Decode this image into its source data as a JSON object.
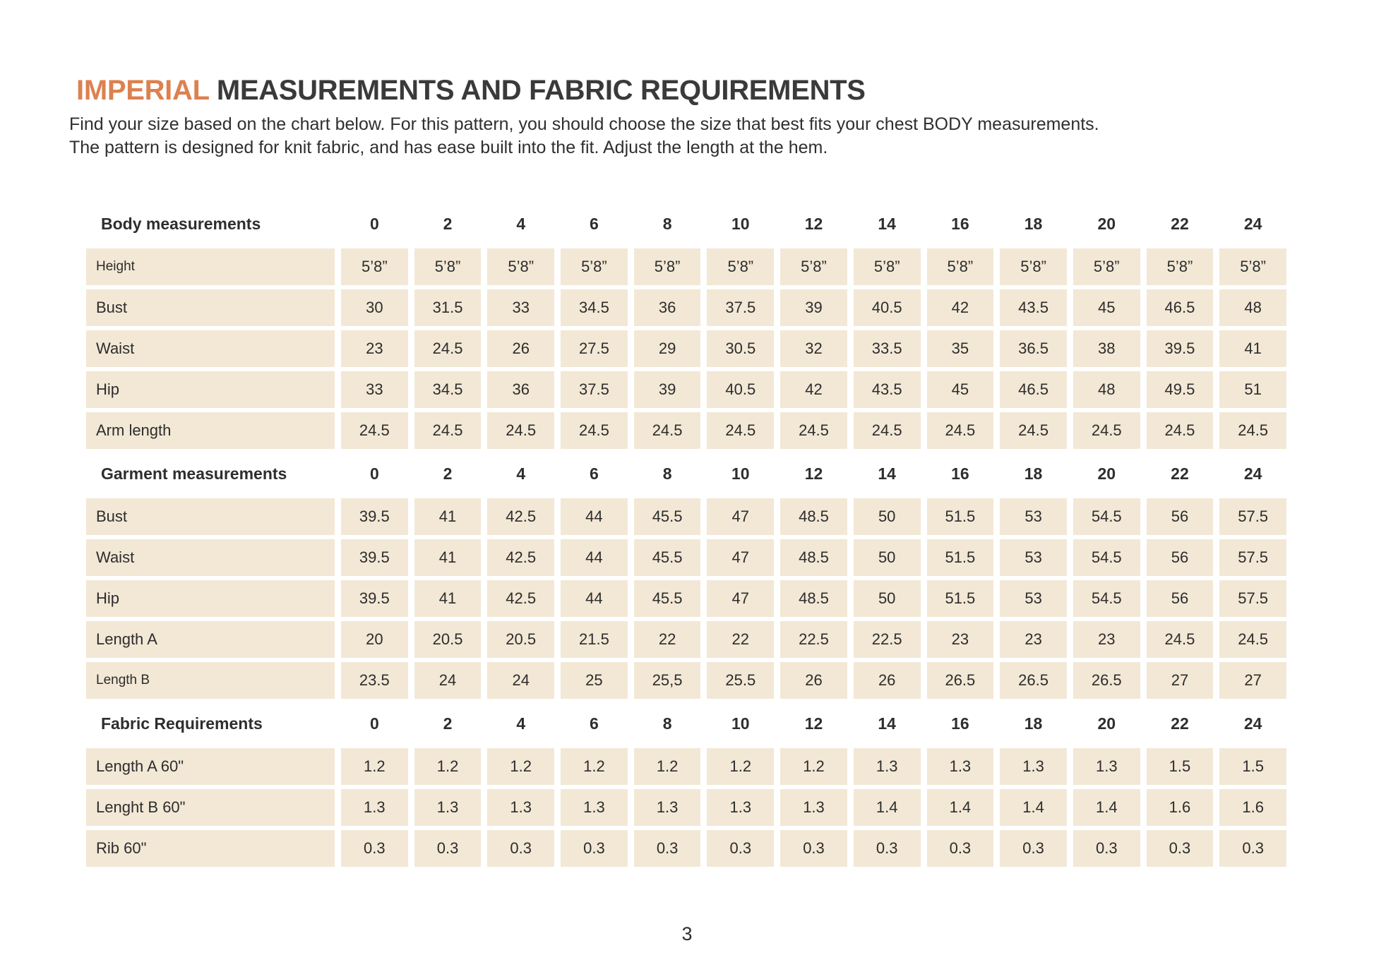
{
  "page": {
    "title_highlight": "IMPERIAL",
    "title_rest": " MEASUREMENTS AND FABRIC REQUIREMENTS",
    "intro_line1": "Find your size based on the chart below. For this pattern, you should choose the size that best fits your chest BODY measurements.",
    "intro_line2": "The pattern is designed for knit fabric, and has ease built into the fit. Adjust the length at the hem.",
    "page_number": "3"
  },
  "colors": {
    "accent_orange": "#DC8150",
    "cell_beige": "#F2E8D5",
    "text_dark": "#2d2d2d"
  },
  "table": {
    "sizes": [
      "0",
      "2",
      "4",
      "6",
      "8",
      "10",
      "12",
      "14",
      "16",
      "18",
      "20",
      "22",
      "24"
    ],
    "sections": [
      {
        "title": "Body measurements",
        "rows": [
          {
            "label": "Height",
            "small": true,
            "values": [
              "5’8”",
              "5’8”",
              "5’8”",
              "5’8”",
              "5’8”",
              "5’8”",
              "5’8”",
              "5’8”",
              "5’8”",
              "5’8”",
              "5’8”",
              "5’8”",
              "5’8”"
            ]
          },
          {
            "label": "Bust",
            "values": [
              "30",
              "31.5",
              "33",
              "34.5",
              "36",
              "37.5",
              "39",
              "40.5",
              "42",
              "43.5",
              "45",
              "46.5",
              "48"
            ]
          },
          {
            "label": "Waist",
            "values": [
              "23",
              "24.5",
              "26",
              "27.5",
              "29",
              "30.5",
              "32",
              "33.5",
              "35",
              "36.5",
              "38",
              "39.5",
              "41"
            ]
          },
          {
            "label": "Hip",
            "values": [
              "33",
              "34.5",
              "36",
              "37.5",
              "39",
              "40.5",
              "42",
              "43.5",
              "45",
              "46.5",
              "48",
              "49.5",
              "51"
            ]
          },
          {
            "label": "Arm length",
            "values": [
              "24.5",
              "24.5",
              "24.5",
              "24.5",
              "24.5",
              "24.5",
              "24.5",
              "24.5",
              "24.5",
              "24.5",
              "24.5",
              "24.5",
              "24.5"
            ]
          }
        ]
      },
      {
        "title": "Garment measurements",
        "rows": [
          {
            "label": "Bust",
            "values": [
              "39.5",
              "41",
              "42.5",
              "44",
              "45.5",
              "47",
              "48.5",
              "50",
              "51.5",
              "53",
              "54.5",
              "56",
              "57.5"
            ]
          },
          {
            "label": "Waist",
            "values": [
              "39.5",
              "41",
              "42.5",
              "44",
              "45.5",
              "47",
              "48.5",
              "50",
              "51.5",
              "53",
              "54.5",
              "56",
              "57.5"
            ]
          },
          {
            "label": "Hip",
            "values": [
              "39.5",
              "41",
              "42.5",
              "44",
              "45.5",
              "47",
              "48.5",
              "50",
              "51.5",
              "53",
              "54.5",
              "56",
              "57.5"
            ]
          },
          {
            "label": "Length A",
            "values": [
              "20",
              "20.5",
              "20.5",
              "21.5",
              "22",
              "22",
              "22.5",
              "22.5",
              "23",
              "23",
              "23",
              "24.5",
              "24.5"
            ]
          },
          {
            "label": "Length B",
            "small": true,
            "values": [
              "23.5",
              "24",
              "24",
              "25",
              "25,5",
              "25.5",
              "26",
              "26",
              "26.5",
              "26.5",
              "26.5",
              "27",
              "27"
            ]
          }
        ]
      },
      {
        "title": "Fabric Requirements",
        "rows": [
          {
            "label": "Length A 60\"",
            "values": [
              "1.2",
              "1.2",
              "1.2",
              "1.2",
              "1.2",
              "1.2",
              "1.2",
              "1.3",
              "1.3",
              "1.3",
              "1.3",
              "1.5",
              "1.5"
            ]
          },
          {
            "label": "Lenght B 60\"",
            "values": [
              "1.3",
              "1.3",
              "1.3",
              "1.3",
              "1.3",
              "1.3",
              "1.3",
              "1.4",
              "1.4",
              "1.4",
              "1.4",
              "1.6",
              "1.6"
            ]
          },
          {
            "label": "Rib 60\"",
            "values": [
              "0.3",
              "0.3",
              "0.3",
              "0.3",
              "0.3",
              "0.3",
              "0.3",
              "0.3",
              "0.3",
              "0.3",
              "0.3",
              "0.3",
              "0.3"
            ]
          }
        ]
      }
    ]
  }
}
